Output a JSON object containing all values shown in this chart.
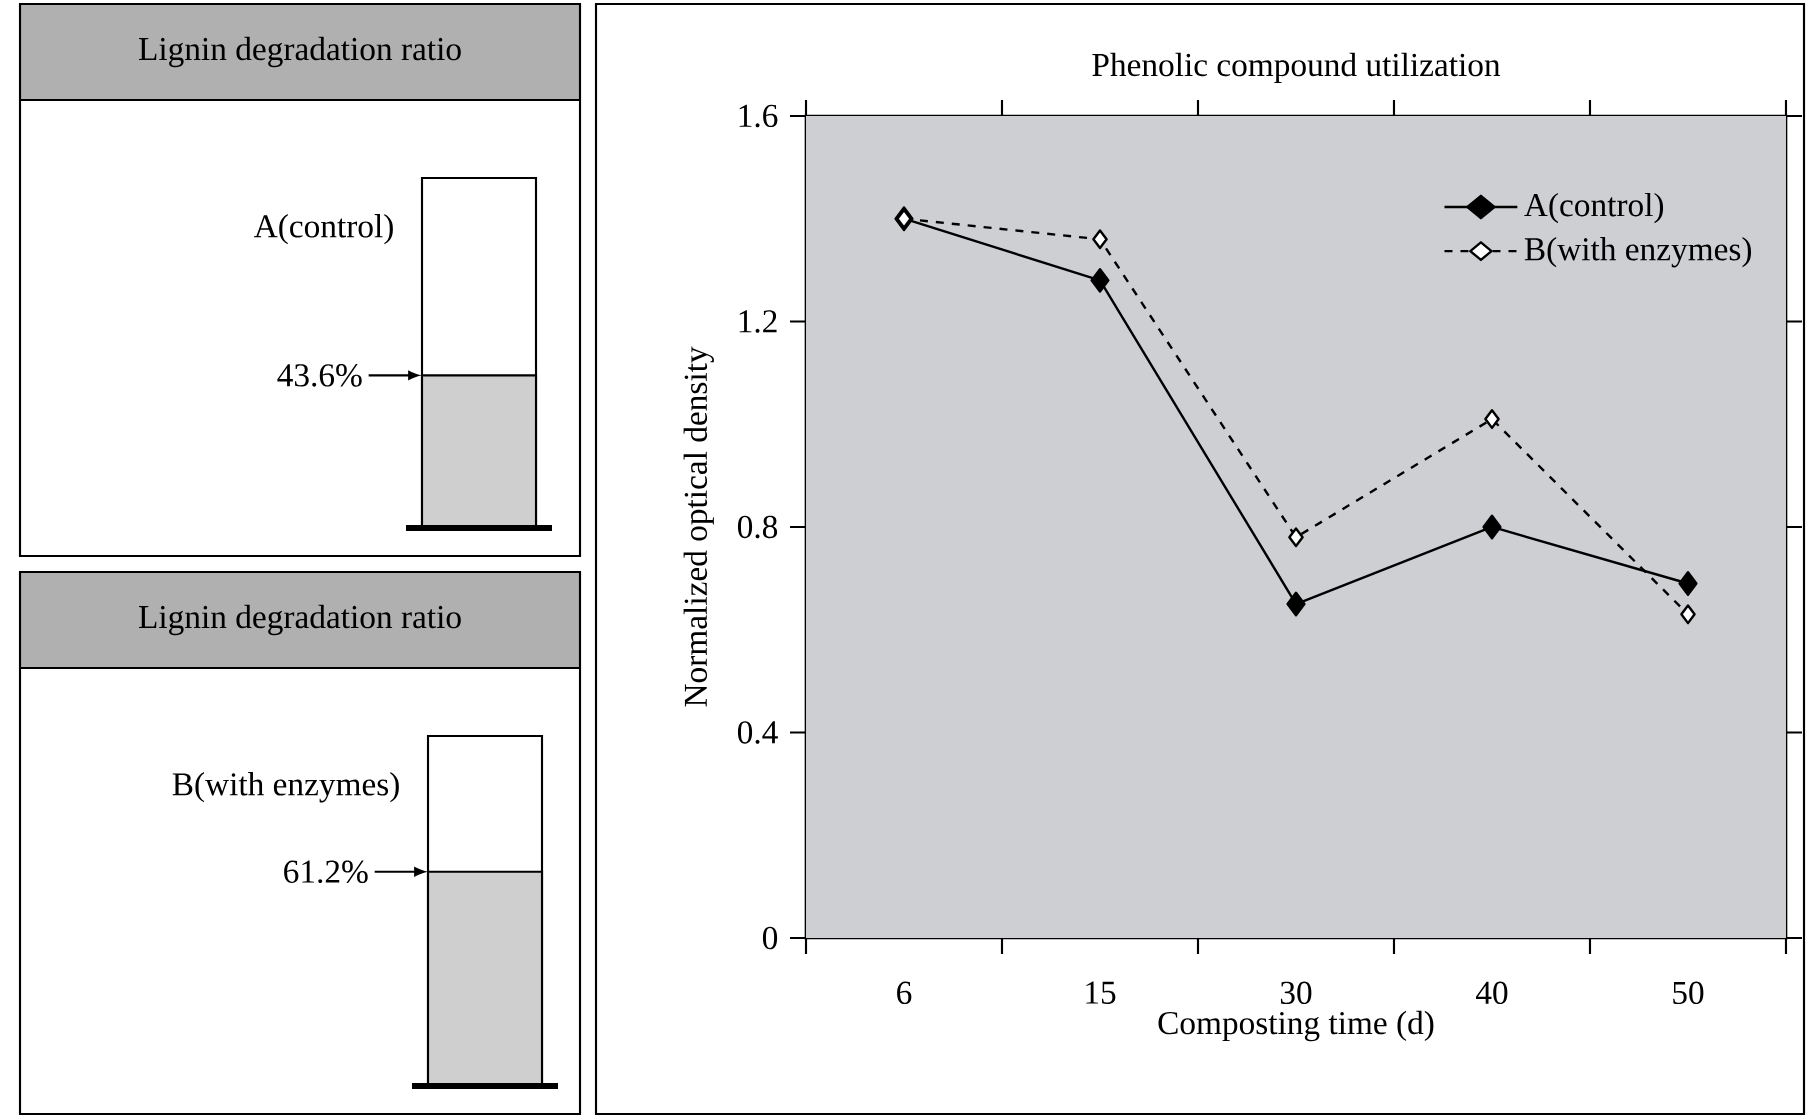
{
  "chart_data": [
    {
      "type": "bar",
      "title": "Lignin degradation ratio",
      "categories": [
        null
      ],
      "values": [
        43.6
      ],
      "value_labels": [
        "43.6%"
      ],
      "color": "#cfcfcf",
      "ylim": [
        0,
        100
      ],
      "annotations": [
        "A(control)"
      ]
    },
    {
      "type": "bar",
      "title": "Lignin degradation ratio",
      "categories": [
        null
      ],
      "values": [
        61.2
      ],
      "value_labels": [
        "61.2%"
      ],
      "color": "#cfcfcf",
      "ylim": [
        0,
        100
      ],
      "annotations": [
        "B(with enzymes)"
      ]
    },
    {
      "type": "line",
      "title": "Phenolic compound utilization",
      "xlabel": "Composting time (d)",
      "ylabel": "Normalized optical density",
      "categories": [
        "6",
        "15",
        "30",
        "40",
        "50"
      ],
      "ylim": [
        0,
        1.6
      ],
      "yticks": [
        0,
        0.4,
        0.8,
        1.2,
        1.6
      ],
      "legend": "top right",
      "marker": "diamond",
      "series": [
        {
          "name": "A(control)",
          "color": "#000000",
          "values": [
            1.4,
            1.28,
            0.65,
            0.8,
            0.69
          ],
          "line_style": "solid"
        },
        {
          "name": "B(with enzymes)",
          "color": "#000000",
          "values": [
            1.4,
            1.36,
            0.78,
            1.01,
            0.63
          ],
          "line_style": "dashed"
        }
      ]
    }
  ]
}
